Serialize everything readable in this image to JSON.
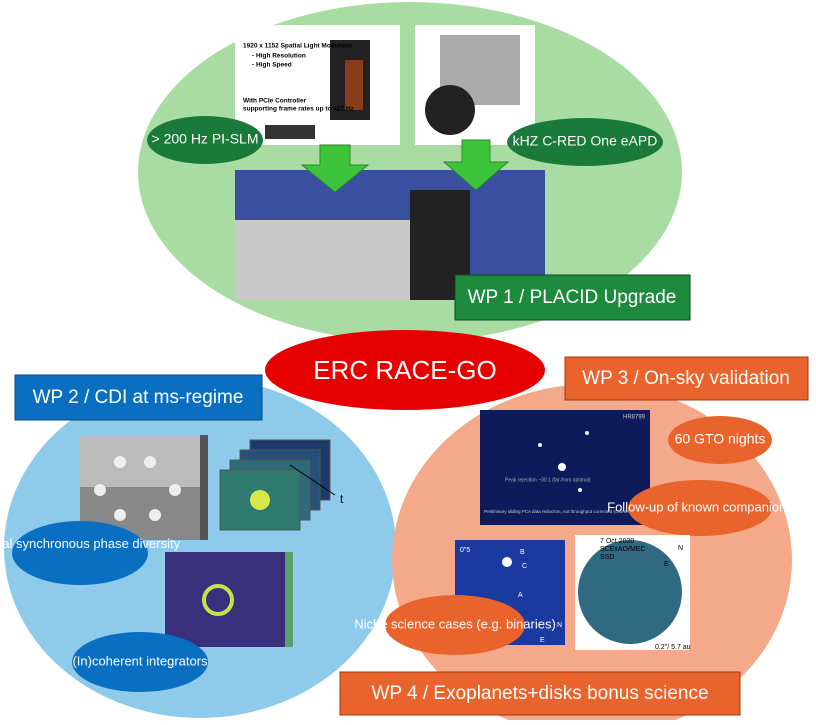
{
  "title": "ERC RACE-GO",
  "wp1": {
    "label": "WP 1 / PLACID Upgrade",
    "slm": "> 200 Hz PI-SLM",
    "apd": "kHZ C-RED One eAPD",
    "slm_caption": [
      "1920 x 1152 Spatial Light Modulator",
      "- High Resolution",
      "- High Speed",
      "With PCIe Controller",
      "supporting frame rates up to 422 Hz"
    ]
  },
  "wp2": {
    "label": "WP 2 / CDI at ms-regime",
    "zonal": "Zonal synchronous phase diversity",
    "integrators": "(In)coherent integrators",
    "time_axis": "t"
  },
  "wp3": {
    "label": "WP 3 / On-sky validation",
    "gto": "60 GTO nights",
    "followup": "Follow-up of known companions",
    "niche": "Niche science cases (e.g. binaries)",
    "image1": {
      "target": "HR8799",
      "note": "Peak rejection ~30:1 (far-from optimal)",
      "caption": "Preliminary sliding PCA data reduction, not throughput corrected (courtesy J. Kuhn, JPL/Caltech)"
    },
    "image2": {
      "scale": "0\"5",
      "labels": [
        "B",
        "C",
        "A"
      ],
      "north": "N",
      "east": "E"
    },
    "image3": {
      "date": "7 Oct 2020",
      "instrument": "SCExAO/MEC",
      "mode": "SSD",
      "north": "N",
      "east": "E",
      "scale": "0.2\"/ 5.7 au"
    }
  },
  "wp4": {
    "label": "WP 4 / Exoplanets+disks bonus science"
  }
}
